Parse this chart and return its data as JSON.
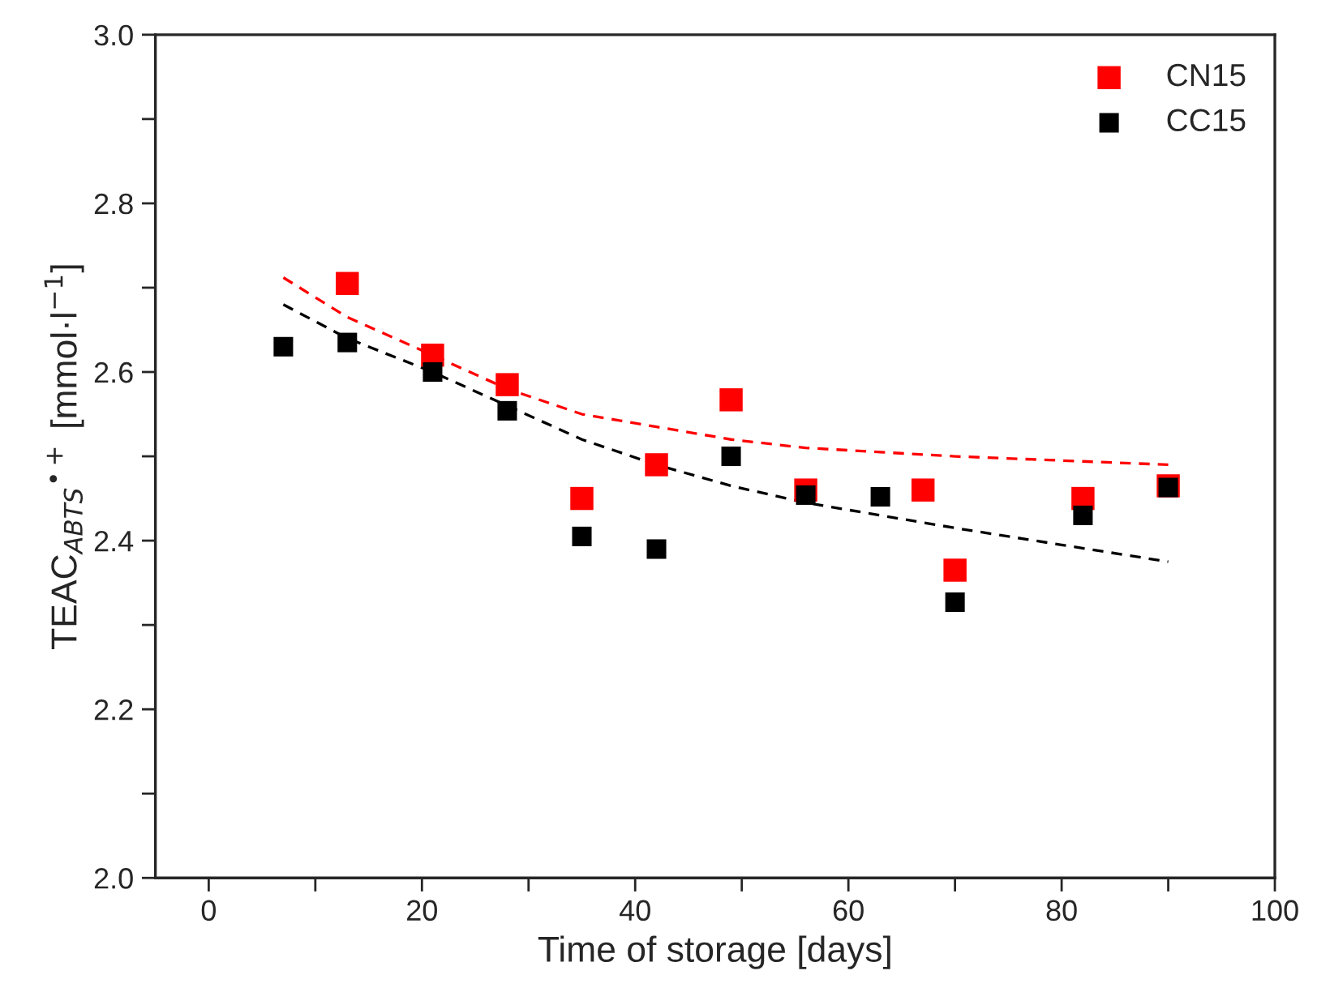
{
  "chart_data": {
    "type": "scatter",
    "xlabel": "Time of storage [days]",
    "ylabel": "TEAC$_{ABTS}$$^{•+}$ [mmol·l$^{−1}$]",
    "series": [
      {
        "name": "CN15",
        "color": "#ff0000",
        "marker": "square",
        "x": [
          13,
          21,
          28,
          35,
          42,
          49,
          56,
          67,
          70,
          82,
          90
        ],
        "values": [
          2.705,
          2.62,
          2.585,
          2.45,
          2.49,
          2.567,
          2.46,
          2.46,
          2.365,
          2.45,
          2.465
        ]
      },
      {
        "name": "CC15",
        "color": "#000000",
        "marker": "square",
        "x": [
          7,
          13,
          21,
          28,
          35,
          42,
          49,
          56,
          63,
          70,
          82,
          90
        ],
        "values": [
          2.63,
          2.635,
          2.6,
          2.554,
          2.405,
          2.39,
          2.5,
          2.454,
          2.452,
          2.327,
          2.43,
          2.463
        ]
      },
      {
        "color": "#ff0000",
        "type": "line",
        "line_style": "dashed",
        "x": [
          7,
          13,
          21,
          28,
          35,
          42,
          49,
          56,
          63,
          70,
          80,
          90
        ],
        "values": [
          2.712,
          2.665,
          2.62,
          2.58,
          2.55,
          2.535,
          2.52,
          2.51,
          2.505,
          2.5,
          2.495,
          2.49
        ]
      },
      {
        "color": "#000000",
        "type": "line",
        "line_style": "dashed",
        "x": [
          7,
          13,
          21,
          28,
          35,
          42,
          49,
          56,
          63,
          70,
          80,
          90
        ],
        "values": [
          2.68,
          2.64,
          2.6,
          2.56,
          2.52,
          2.49,
          2.465,
          2.445,
          2.43,
          2.415,
          2.395,
          2.375
        ]
      }
    ],
    "xlim": [
      -5,
      100
    ],
    "ylim": [
      2.0,
      3.0
    ],
    "xticks": [
      0,
      {
        "value": 10,
        "label": null
      },
      20,
      {
        "value": 30,
        "label": null
      },
      40,
      {
        "value": 50,
        "label": null
      },
      60,
      {
        "value": 70,
        "label": null
      },
      80,
      {
        "value": 90,
        "label": null
      },
      100
    ],
    "yticks": [
      {
        "value": 2.0,
        "label": "2.0"
      },
      {
        "value": 2.1,
        "label": null
      },
      2.2,
      {
        "value": 2.3,
        "label": null
      },
      2.4,
      {
        "value": 2.5,
        "label": null
      },
      2.6,
      {
        "value": 2.7,
        "label": null
      },
      2.8,
      {
        "value": 2.9,
        "label": null
      },
      {
        "value": 3.0,
        "label": "3.0"
      }
    ],
    "grid": false,
    "legend": "top right"
  }
}
